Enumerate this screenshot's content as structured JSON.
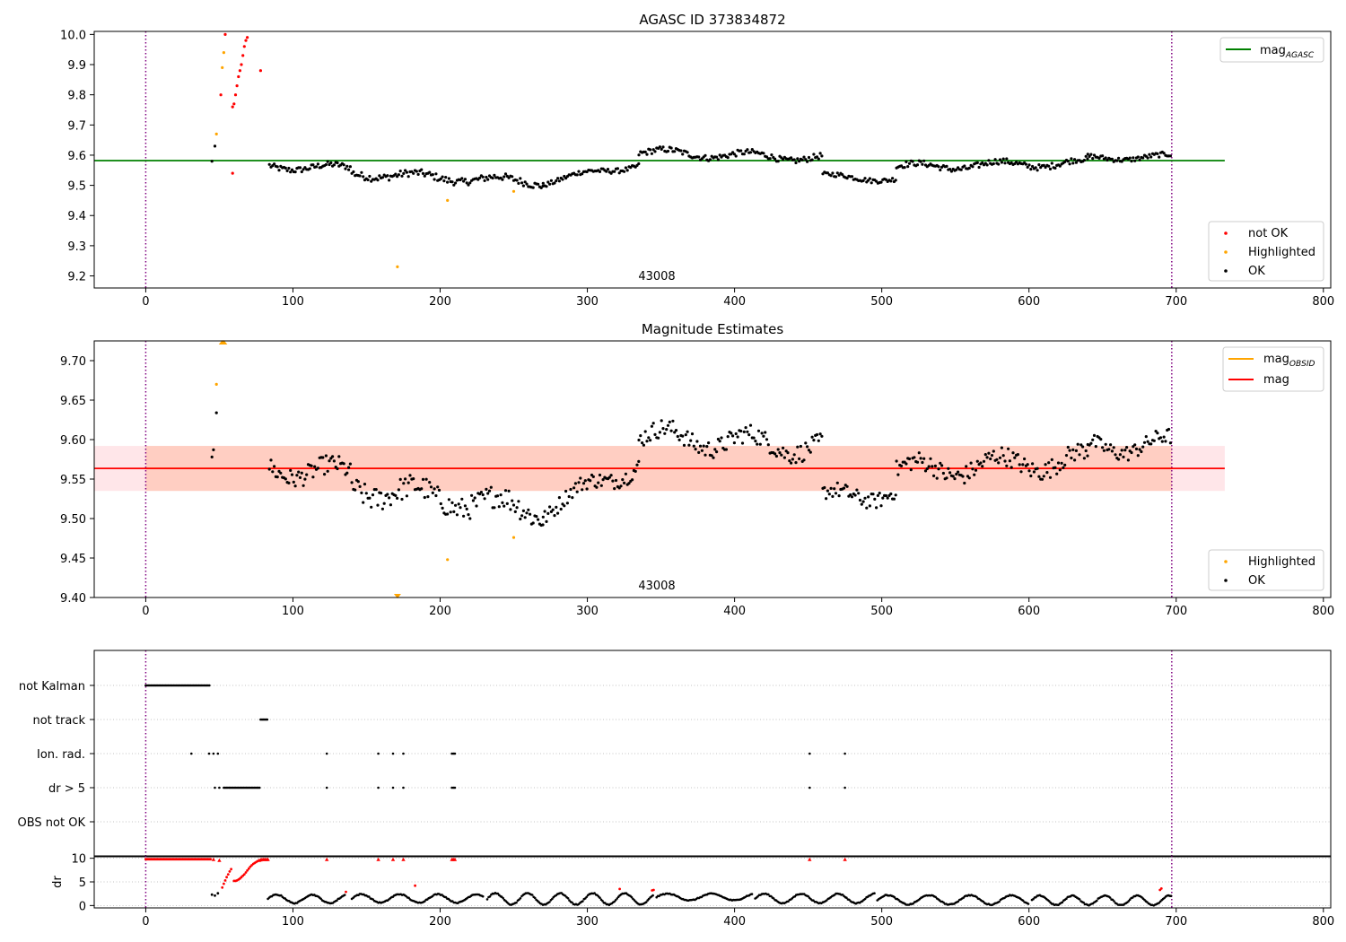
{
  "chart_data": [
    {
      "type": "scatter",
      "panel": "top",
      "title": "AGASC ID 373834872",
      "annotation": "43008",
      "xlim": [
        -35,
        805
      ],
      "ylim": [
        9.16,
        10.01
      ],
      "xticks": [
        "0",
        "100",
        "200",
        "300",
        "400",
        "500",
        "600",
        "700",
        "800"
      ],
      "yticks": [
        "9.2",
        "9.3",
        "9.4",
        "9.5",
        "9.6",
        "9.7",
        "9.8",
        "9.9",
        "10.0"
      ],
      "vlines": [
        0,
        697
      ],
      "hline": {
        "name": "mag",
        "subscript": "AGASC",
        "y": 9.582,
        "x_range": [
          -35,
          733
        ],
        "color": "#008000"
      },
      "legend_lines_position": "upper right",
      "legend_points_position": "lower right",
      "series": [
        {
          "name": "not OK",
          "color": "#ff0000",
          "points": [
            [
              51,
              9.8
            ],
            [
              54,
              10.0
            ],
            [
              59,
              9.54
            ],
            [
              59,
              9.76
            ],
            [
              60,
              9.77
            ],
            [
              61,
              9.8
            ],
            [
              62,
              9.83
            ],
            [
              63,
              9.86
            ],
            [
              64,
              9.88
            ],
            [
              65,
              9.9
            ],
            [
              66,
              9.93
            ],
            [
              67,
              9.96
            ],
            [
              68,
              9.98
            ],
            [
              69,
              9.99
            ],
            [
              78,
              9.88
            ]
          ]
        },
        {
          "name": "Highlighted",
          "color": "#ffa500",
          "points": [
            [
              48,
              9.67
            ],
            [
              52,
              9.89
            ],
            [
              53,
              9.94
            ],
            [
              171,
              9.23
            ],
            [
              205,
              9.45
            ],
            [
              250,
              9.48
            ]
          ]
        },
        {
          "name": "OK",
          "color": "#000000",
          "points": [
            [
              45,
              9.58
            ],
            [
              47,
              9.63
            ]
          ],
          "segments": [
            {
              "x0": 84,
              "x1": 140,
              "y0": 9.565,
              "y1": 9.555,
              "amp": 0.012,
              "noise": 0.01
            },
            {
              "x0": 140,
              "x1": 270,
              "y0": 9.54,
              "y1": 9.51,
              "amp": 0.012,
              "noise": 0.012
            },
            {
              "x0": 270,
              "x1": 335,
              "y0": 9.51,
              "y1": 9.57,
              "amp": 0.01,
              "noise": 0.008
            },
            {
              "x0": 335,
              "x1": 460,
              "y0": 9.61,
              "y1": 9.59,
              "amp": 0.012,
              "noise": 0.01
            },
            {
              "x0": 460,
              "x1": 510,
              "y0": 9.53,
              "y1": 9.52,
              "amp": 0.008,
              "noise": 0.008
            },
            {
              "x0": 510,
              "x1": 640,
              "y0": 9.56,
              "y1": 9.575,
              "amp": 0.012,
              "noise": 0.01
            },
            {
              "x0": 640,
              "x1": 697,
              "y0": 9.59,
              "y1": 9.595,
              "amp": 0.008,
              "noise": 0.008
            }
          ]
        }
      ]
    },
    {
      "type": "scatter",
      "panel": "middle",
      "title": "Magnitude Estimates",
      "annotation": "43008",
      "xlim": [
        -35,
        805
      ],
      "ylim": [
        9.4,
        9.725
      ],
      "xticks": [
        "0",
        "100",
        "200",
        "300",
        "400",
        "500",
        "600",
        "700",
        "800"
      ],
      "yticks": [
        "9.40",
        "9.45",
        "9.50",
        "9.55",
        "9.60",
        "9.65",
        "9.70"
      ],
      "vlines": [
        0,
        697
      ],
      "bands": [
        {
          "y0": 9.535,
          "y1": 9.592,
          "x_range": [
            -35,
            733
          ],
          "color": "#ffb6c1",
          "opacity": 0.35
        },
        {
          "y0": 9.535,
          "y1": 9.592,
          "x_range": [
            0,
            697
          ],
          "color": "#ffa07a",
          "opacity": 0.35
        }
      ],
      "lines": [
        {
          "name": "mag",
          "subscript": "OBSID",
          "y": 9.5635,
          "x_range": [
            0,
            697
          ],
          "color": "#ffa500"
        },
        {
          "name": "mag",
          "subscript": "",
          "y": 9.5635,
          "x_range": [
            -35,
            733
          ],
          "color": "#ff0000"
        }
      ],
      "legend_lines_position": "upper right",
      "legend_points_position": "lower right",
      "series": [
        {
          "name": "Highlighted",
          "color": "#ffa500",
          "points": [
            [
              48,
              9.67
            ],
            [
              205,
              9.448
            ],
            [
              250,
              9.476
            ]
          ]
        },
        {
          "name": "OK",
          "color": "#000000",
          "points": [
            [
              45,
              9.578
            ],
            [
              46,
              9.587
            ],
            [
              48,
              9.634
            ]
          ],
          "segments": [
            {
              "x0": 84,
              "x1": 140,
              "y0": 9.565,
              "y1": 9.555,
              "amp": 0.012,
              "noise": 0.012
            },
            {
              "x0": 140,
              "x1": 270,
              "y0": 9.54,
              "y1": 9.51,
              "amp": 0.012,
              "noise": 0.015
            },
            {
              "x0": 270,
              "x1": 335,
              "y0": 9.51,
              "y1": 9.57,
              "amp": 0.01,
              "noise": 0.01
            },
            {
              "x0": 335,
              "x1": 460,
              "y0": 9.605,
              "y1": 9.59,
              "amp": 0.012,
              "noise": 0.012
            },
            {
              "x0": 460,
              "x1": 510,
              "y0": 9.525,
              "y1": 9.535,
              "amp": 0.01,
              "noise": 0.01
            },
            {
              "x0": 510,
              "x1": 640,
              "y0": 9.56,
              "y1": 9.575,
              "amp": 0.012,
              "noise": 0.012
            },
            {
              "x0": 640,
              "x1": 697,
              "y0": 9.59,
              "y1": 9.595,
              "amp": 0.01,
              "noise": 0.01
            }
          ]
        }
      ],
      "edge_markers": [
        {
          "x": 52,
          "y": 9.725,
          "dir": "up",
          "color": "#ffa500"
        },
        {
          "x": 53,
          "y": 9.725,
          "dir": "up",
          "color": "#ffa500"
        },
        {
          "x": 171,
          "y": 9.4,
          "dir": "down",
          "color": "#ffa500"
        }
      ]
    },
    {
      "type": "scatter",
      "panel": "flags",
      "xlim": [
        -35,
        805
      ],
      "rows": [
        "not Kalman",
        "not track",
        "Ion. rad.",
        "dr > 5",
        "OBS not OK"
      ],
      "vlines": [
        0,
        697
      ],
      "flag_runs": [
        {
          "row": 0,
          "ranges": [
            [
              0,
              44
            ]
          ]
        },
        {
          "row": 1,
          "ranges": [
            [
              78,
              83
            ]
          ]
        },
        {
          "row": 2,
          "points": [
            31,
            43,
            46,
            49,
            123,
            158,
            168,
            175,
            208,
            209,
            210,
            451,
            475
          ]
        },
        {
          "row": 3,
          "points": [
            47,
            50,
            123,
            158,
            168,
            175,
            208,
            209,
            210,
            451,
            475
          ],
          "ranges": [
            [
              53,
              78
            ]
          ]
        }
      ]
    },
    {
      "type": "scatter",
      "panel": "dr",
      "ylabel": "dr",
      "xlim": [
        -35,
        805
      ],
      "ylim": [
        -0.5,
        10.5
      ],
      "xticks": [
        "0",
        "100",
        "200",
        "300",
        "400",
        "500",
        "600",
        "700",
        "800"
      ],
      "yticks": [
        "0",
        "5",
        "10"
      ],
      "vlines": [
        0,
        697
      ],
      "series": [
        {
          "name": "not OK",
          "color": "#ff0000",
          "runs": [
            {
              "x0": 0,
              "x1": 44,
              "y": 9.8
            }
          ],
          "points": [
            [
              46,
              9.8
            ],
            [
              50,
              9.6
            ],
            [
              52,
              3.8
            ],
            [
              53,
              4.6
            ],
            [
              54,
              5.3
            ],
            [
              55,
              6.0
            ],
            [
              56,
              6.6
            ],
            [
              57,
              7.2
            ],
            [
              58,
              7.7
            ],
            [
              60,
              5.2
            ],
            [
              61,
              5.2
            ],
            [
              62,
              5.3
            ],
            [
              63,
              5.5
            ],
            [
              64,
              5.7
            ],
            [
              65,
              6.0
            ],
            [
              66,
              6.3
            ],
            [
              67,
              6.6
            ],
            [
              68,
              7.0
            ],
            [
              69,
              7.4
            ],
            [
              70,
              7.8
            ],
            [
              71,
              8.2
            ],
            [
              72,
              8.5
            ],
            [
              73,
              8.8
            ],
            [
              74,
              9.0
            ],
            [
              75,
              9.2
            ],
            [
              76,
              9.4
            ],
            [
              77,
              9.6
            ],
            [
              78,
              9.7
            ],
            [
              79,
              9.8
            ],
            [
              80,
              9.8
            ],
            [
              81,
              9.8
            ],
            [
              82,
              9.8
            ],
            [
              83,
              9.8
            ],
            [
              123,
              9.8
            ],
            [
              158,
              9.8
            ],
            [
              168,
              9.8
            ],
            [
              175,
              9.8
            ],
            [
              208,
              9.8
            ],
            [
              209,
              9.8
            ],
            [
              210,
              9.8
            ],
            [
              451,
              9.8
            ],
            [
              475,
              9.8
            ],
            [
              136,
              2.9
            ],
            [
              183,
              4.2
            ],
            [
              322,
              3.5
            ],
            [
              344,
              3.2
            ],
            [
              345,
              3.3
            ],
            [
              689,
              3.3
            ],
            [
              690,
              3.6
            ]
          ]
        },
        {
          "name": "OK",
          "color": "#000000",
          "points": [
            [
              45,
              2.3
            ],
            [
              47,
              2.1
            ],
            [
              49,
              2.6
            ]
          ],
          "waves": [
            {
              "x0": 83,
              "x1": 136,
              "base": 1.4,
              "amp": 0.9,
              "period": 24
            },
            {
              "x0": 140,
              "x1": 230,
              "base": 1.5,
              "amp": 0.9,
              "period": 26
            },
            {
              "x0": 232,
              "x1": 345,
              "base": 1.4,
              "amp": 1.2,
              "period": 22
            },
            {
              "x0": 347,
              "x1": 412,
              "base": 1.8,
              "amp": 0.7,
              "period": 30
            },
            {
              "x0": 414,
              "x1": 495,
              "base": 1.5,
              "amp": 1.0,
              "period": 25
            },
            {
              "x0": 497,
              "x1": 600,
              "base": 1.2,
              "amp": 1.0,
              "period": 28
            },
            {
              "x0": 602,
              "x1": 697,
              "base": 1.1,
              "amp": 1.0,
              "period": 22
            }
          ]
        }
      ]
    }
  ]
}
